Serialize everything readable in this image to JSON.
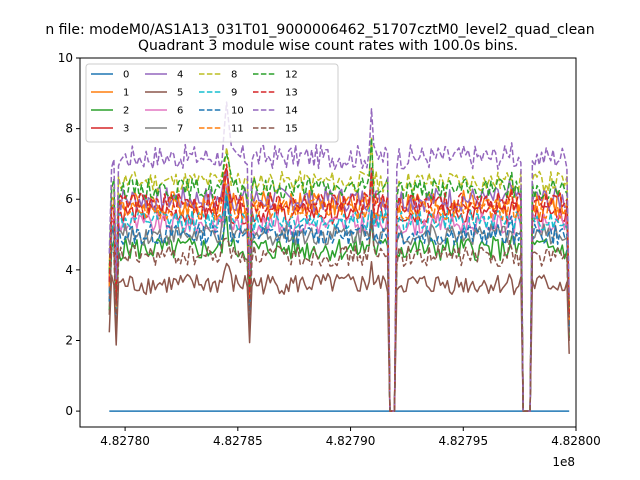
{
  "chart_data": {
    "type": "line",
    "suptitle": "n file: modeM0/AS1A13_031T01_9000006462_51707cztM0_level2_quad_clean",
    "title": "Quadrant 3 module wise count rates with 100.0s bins.",
    "xlabel": "",
    "ylabel": "",
    "offset_label": "1e8",
    "xlim": [
      4.82778,
      4.828
    ],
    "ylim": [
      -0.45,
      10
    ],
    "x_ticks": [
      {
        "value": 4.8278,
        "label": "4.82780"
      },
      {
        "value": 4.82785,
        "label": "4.82785"
      },
      {
        "value": 4.8279,
        "label": "4.82790"
      },
      {
        "value": 4.82795,
        "label": "4.82795"
      },
      {
        "value": 4.828,
        "label": "4.82800"
      }
    ],
    "y_ticks": [
      {
        "value": 0,
        "label": "0"
      },
      {
        "value": 2,
        "label": "2"
      },
      {
        "value": 4,
        "label": "4"
      },
      {
        "value": 6,
        "label": "6"
      },
      {
        "value": 8,
        "label": "8"
      },
      {
        "value": 10,
        "label": "10"
      }
    ],
    "x_start": 4.827793,
    "x_end": 4.827997,
    "features": {
      "dip1": 4.827855,
      "spike": 4.827909,
      "gap1": [
        4.827917,
        4.82792
      ],
      "gap2": [
        4.827976,
        4.82798
      ],
      "peak2": 4.827971
    },
    "legend": {
      "position": "top-left",
      "ncol": 4
    },
    "series": [
      {
        "name": "0",
        "color": "#1f77b4",
        "dash": "solid",
        "mean": 0,
        "noise": 0
      },
      {
        "name": "1",
        "color": "#ff7f0e",
        "dash": "solid",
        "mean": 5.9,
        "noise": 0.35
      },
      {
        "name": "2",
        "color": "#2ca02c",
        "dash": "solid",
        "mean": 4.6,
        "noise": 0.35
      },
      {
        "name": "3",
        "color": "#d62728",
        "dash": "solid",
        "mean": 5.6,
        "noise": 0.3
      },
      {
        "name": "4",
        "color": "#9467bd",
        "dash": "solid",
        "mean": 6.0,
        "noise": 0.35
      },
      {
        "name": "5",
        "color": "#8c564b",
        "dash": "solid",
        "mean": 3.6,
        "noise": 0.3
      },
      {
        "name": "6",
        "color": "#e377c2",
        "dash": "solid",
        "mean": 5.3,
        "noise": 0.3
      },
      {
        "name": "7",
        "color": "#7f7f7f",
        "dash": "solid",
        "mean": 5.0,
        "noise": 0.3
      },
      {
        "name": "8",
        "color": "#bcbd22",
        "dash": "dashed",
        "mean": 6.5,
        "noise": 0.3
      },
      {
        "name": "9",
        "color": "#17becf",
        "dash": "dashed",
        "mean": 5.4,
        "noise": 0.3
      },
      {
        "name": "10",
        "color": "#1f77b4",
        "dash": "dashed",
        "mean": 5.0,
        "noise": 0.3
      },
      {
        "name": "11",
        "color": "#ff7f0e",
        "dash": "dashed",
        "mean": 5.7,
        "noise": 0.3
      },
      {
        "name": "12",
        "color": "#2ca02c",
        "dash": "dashed",
        "mean": 6.3,
        "noise": 0.3
      },
      {
        "name": "13",
        "color": "#d62728",
        "dash": "dashed",
        "mean": 5.9,
        "noise": 0.3
      },
      {
        "name": "14",
        "color": "#9467bd",
        "dash": "dashed",
        "mean": 7.2,
        "noise": 0.35
      },
      {
        "name": "15",
        "color": "#8c564b",
        "dash": "dashed",
        "mean": 4.4,
        "noise": 0.3
      }
    ]
  }
}
